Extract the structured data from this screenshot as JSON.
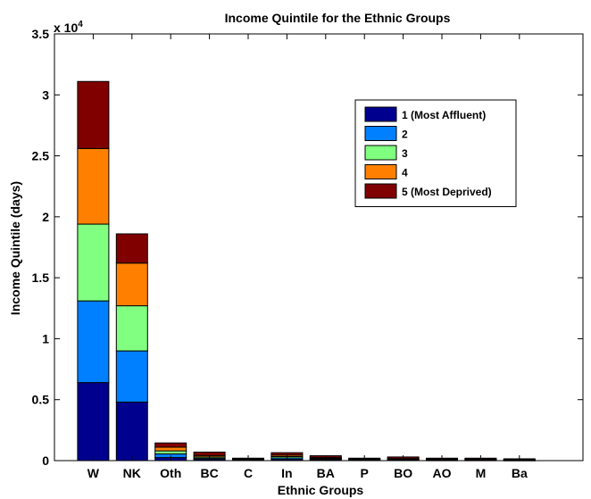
{
  "chart_data": {
    "type": "bar",
    "stacked": true,
    "title": "Income Quintile for the Ethnic Groups",
    "xlabel": "Ethnic Groups",
    "ylabel": "Income Quintile (days)",
    "y_multiplier_label": "x 10",
    "y_multiplier_exponent": "4",
    "ylim": [
      0,
      35000
    ],
    "yticks": [
      0,
      5000,
      10000,
      15000,
      20000,
      25000,
      30000,
      35000
    ],
    "ytick_labels": [
      "0",
      "0.5",
      "1",
      "1.5",
      "2",
      "2.5",
      "3",
      "3.5"
    ],
    "categories": [
      "W",
      "NK",
      "Oth",
      "BC",
      "C",
      "In",
      "BA",
      "P",
      "BO",
      "AO",
      "M",
      "Ba"
    ],
    "legend_position": "top-right",
    "grid": false,
    "series": [
      {
        "name": "1 (Most Affluent)",
        "color": "#00008f",
        "values": [
          6400,
          4800,
          250,
          100,
          50,
          100,
          60,
          40,
          40,
          30,
          30,
          20
        ]
      },
      {
        "name": "2",
        "color": "#0080ff",
        "values": [
          6700,
          4200,
          300,
          100,
          40,
          120,
          60,
          30,
          40,
          30,
          30,
          20
        ]
      },
      {
        "name": "3",
        "color": "#80ff80",
        "values": [
          6300,
          3700,
          250,
          100,
          30,
          110,
          60,
          30,
          40,
          30,
          30,
          20
        ]
      },
      {
        "name": "4",
        "color": "#ff8000",
        "values": [
          6200,
          3500,
          300,
          120,
          30,
          120,
          70,
          30,
          40,
          30,
          30,
          20
        ]
      },
      {
        "name": "5 (Most Deprived)",
        "color": "#800000",
        "values": [
          5500,
          2400,
          350,
          280,
          50,
          200,
          150,
          70,
          140,
          80,
          80,
          70
        ]
      }
    ]
  }
}
